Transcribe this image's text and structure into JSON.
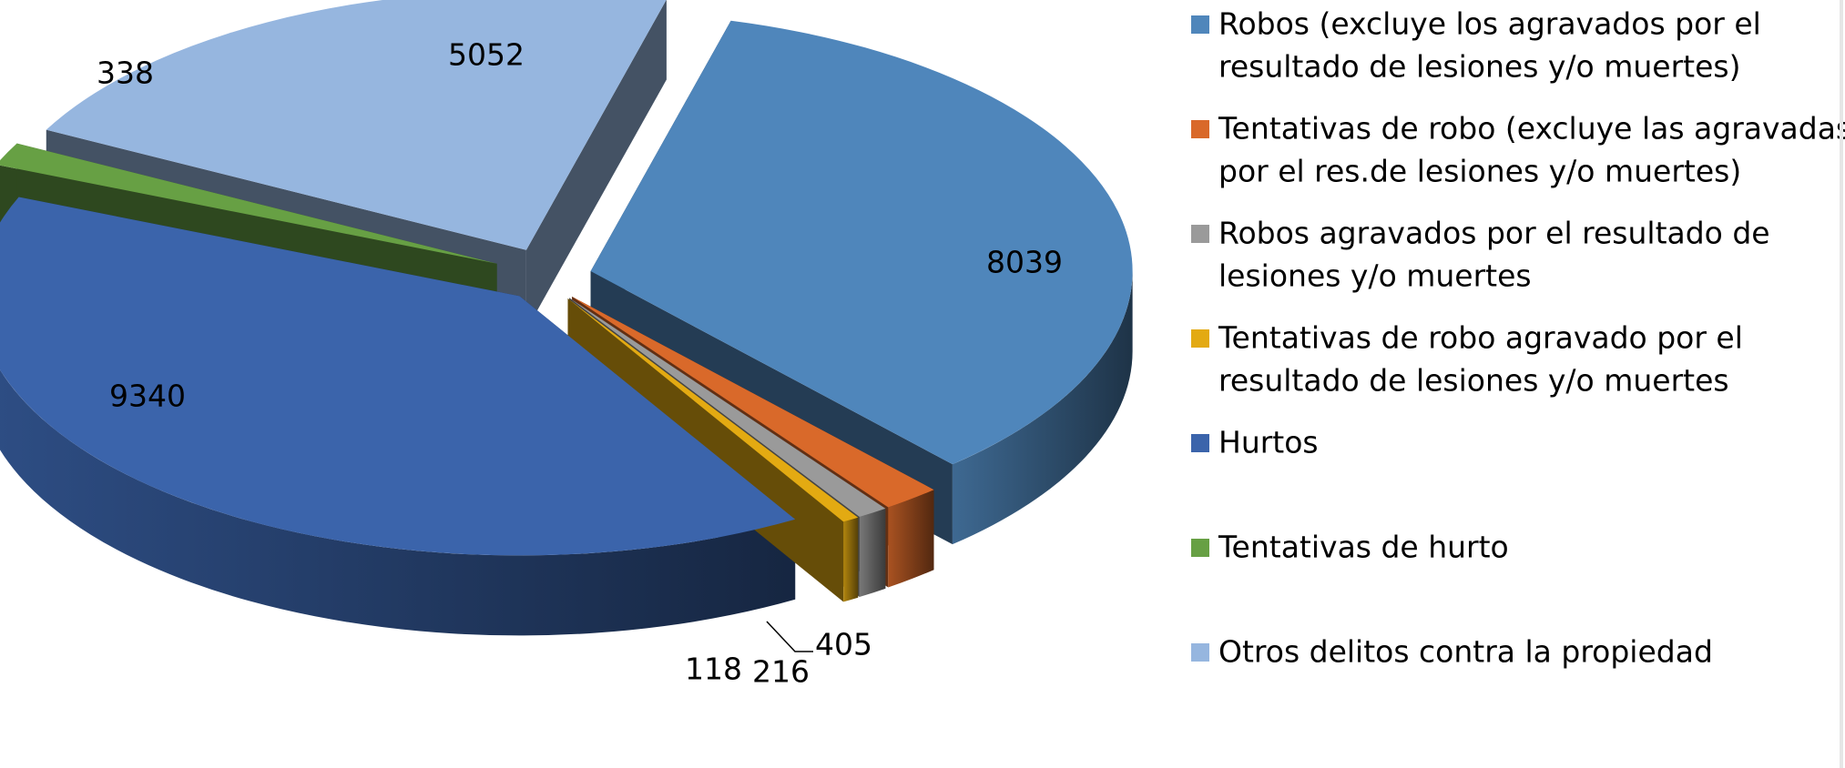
{
  "chart_data": {
    "type": "pie",
    "subtype": "3d-exploded",
    "title": "",
    "categories": [
      "Robos (excluye los agravados por el resultado de lesiones y/o muertes)",
      "Tentativas de robo (excluye las agravadas por el res.de lesiones y/o muertes)",
      "Robos agravados por el resultado de lesiones y/o muertes",
      "Tentativas de robo agravado por el resultado de lesiones y/o muertes",
      "Hurtos",
      "Tentativas de hurto",
      "Otros delitos contra la propiedad"
    ],
    "values": [
      8039,
      405,
      216,
      118,
      9340,
      338,
      5052
    ],
    "data_labels": [
      "8039",
      "405",
      "216",
      "118",
      "9340",
      "338",
      "5052"
    ],
    "colors": [
      "#4f86bb",
      "#d9692a",
      "#9a9a9a",
      "#e3aa12",
      "#3b64ab",
      "#67a044",
      "#96b6df"
    ],
    "legend": {
      "position": "right",
      "entries": [
        [
          "Robos (excluye los agravados por el",
          "resultado de lesiones y/o muertes)"
        ],
        [
          "Tentativas de robo (excluye las agravadas",
          "por el res.de lesiones y/o muertes)"
        ],
        [
          "Robos agravados por el resultado de",
          "lesiones y/o muertes"
        ],
        [
          "Tentativas de robo agravado por el",
          "resultado de lesiones y/o muertes"
        ],
        [
          "Hurtos"
        ],
        [
          "Tentativas de hurto"
        ],
        [
          "Otros delitos contra la propiedad"
        ]
      ]
    }
  }
}
